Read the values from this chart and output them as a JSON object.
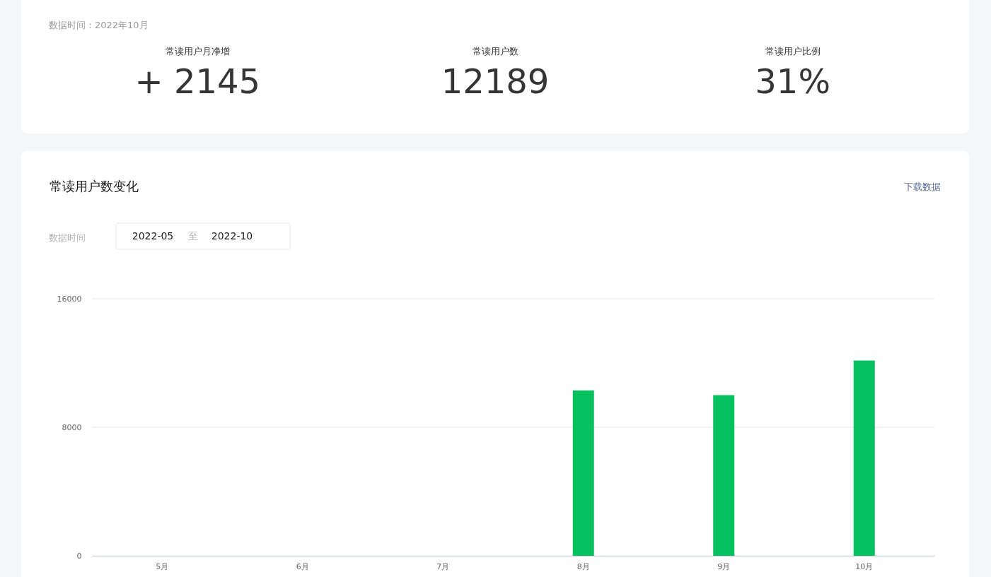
{
  "chart_data": [
    {
      "type": "other",
      "subtitle": "数据时间：2022年10月",
      "categories": [
        "常读用户月净增",
        "常读用户数",
        "常读用户比例"
      ],
      "annotations": [
        "+ 2145",
        "12189",
        "31%"
      ]
    },
    {
      "type": "bar",
      "title": "常读用户数变化",
      "annotations": [
        "下载数据",
        "数据时间",
        "2022-05",
        "至",
        "2022-10"
      ],
      "categories": [
        "5月",
        "6月",
        "7月",
        "8月",
        "9月",
        "10月"
      ],
      "values": [
        null,
        null,
        null,
        10300,
        10000,
        12150
      ],
      "color": "#07c160",
      "ylim": [
        0,
        16000
      ],
      "yticks": [
        0,
        8000,
        16000
      ],
      "grid": "y"
    }
  ]
}
